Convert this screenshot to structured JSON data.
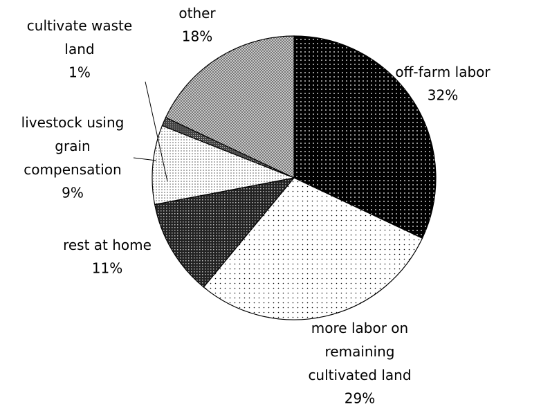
{
  "chart_data": {
    "type": "pie",
    "categories": [
      "off-farm labor",
      "more labor on remaining cultivated land",
      "rest at home",
      "livestock using grain compensation",
      "cultivate waste land",
      "other"
    ],
    "values": [
      32,
      29,
      11,
      9,
      1,
      18
    ],
    "value_labels": [
      "32%",
      "29%",
      "11%",
      "9%",
      "1%",
      "18%"
    ]
  }
}
